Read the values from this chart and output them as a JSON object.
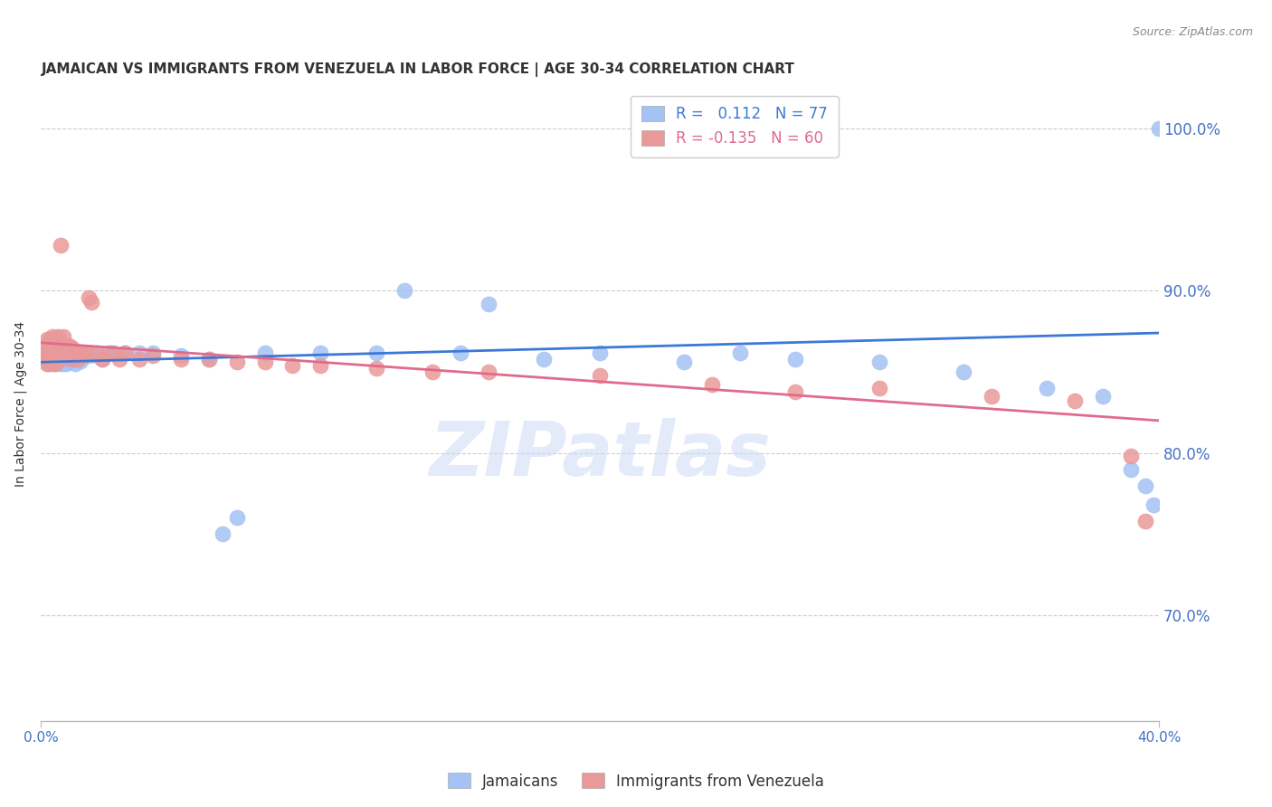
{
  "title": "JAMAICAN VS IMMIGRANTS FROM VENEZUELA IN LABOR FORCE | AGE 30-34 CORRELATION CHART",
  "source": "Source: ZipAtlas.com",
  "ylabel": "In Labor Force | Age 30-34",
  "xlim": [
    0.0,
    0.4
  ],
  "ylim": [
    0.635,
    1.025
  ],
  "right_yticks": [
    1.0,
    0.9,
    0.8,
    0.7
  ],
  "right_yticklabels": [
    "100.0%",
    "90.0%",
    "80.0%",
    "70.0%"
  ],
  "blue_R": 0.112,
  "blue_N": 77,
  "pink_R": -0.135,
  "pink_N": 60,
  "blue_color": "#a4c2f4",
  "pink_color": "#ea9999",
  "blue_line_color": "#3c78d8",
  "pink_line_color": "#e06b8b",
  "blue_label": "Jamaicans",
  "pink_label": "Immigrants from Venezuela",
  "watermark": "ZIPatlas",
  "blue_scatter_x": [
    0.001,
    0.001,
    0.002,
    0.002,
    0.002,
    0.003,
    0.003,
    0.003,
    0.003,
    0.004,
    0.004,
    0.004,
    0.004,
    0.005,
    0.005,
    0.005,
    0.005,
    0.005,
    0.006,
    0.006,
    0.006,
    0.006,
    0.007,
    0.007,
    0.007,
    0.007,
    0.008,
    0.008,
    0.008,
    0.009,
    0.009,
    0.009,
    0.01,
    0.01,
    0.01,
    0.011,
    0.011,
    0.012,
    0.012,
    0.013,
    0.013,
    0.014,
    0.014,
    0.015,
    0.016,
    0.017,
    0.018,
    0.02,
    0.022,
    0.024,
    0.026,
    0.03,
    0.035,
    0.04,
    0.05,
    0.06,
    0.08,
    0.1,
    0.12,
    0.15,
    0.18,
    0.2,
    0.23,
    0.25,
    0.27,
    0.3,
    0.33,
    0.36,
    0.38,
    0.39,
    0.395,
    0.398,
    0.4,
    0.13,
    0.16,
    0.065,
    0.07
  ],
  "blue_scatter_y": [
    0.858,
    0.862,
    0.855,
    0.863,
    0.868,
    0.856,
    0.862,
    0.865,
    0.87,
    0.855,
    0.86,
    0.865,
    0.87,
    0.855,
    0.858,
    0.862,
    0.865,
    0.87,
    0.856,
    0.86,
    0.863,
    0.868,
    0.855,
    0.858,
    0.862,
    0.866,
    0.855,
    0.86,
    0.865,
    0.855,
    0.86,
    0.865,
    0.856,
    0.86,
    0.865,
    0.858,
    0.862,
    0.855,
    0.862,
    0.858,
    0.862,
    0.857,
    0.862,
    0.86,
    0.862,
    0.86,
    0.862,
    0.86,
    0.858,
    0.862,
    0.862,
    0.862,
    0.862,
    0.862,
    0.86,
    0.858,
    0.862,
    0.862,
    0.862,
    0.862,
    0.858,
    0.862,
    0.856,
    0.862,
    0.858,
    0.856,
    0.85,
    0.84,
    0.835,
    0.79,
    0.78,
    0.768,
    1.0,
    0.9,
    0.892,
    0.75,
    0.76
  ],
  "pink_scatter_x": [
    0.001,
    0.001,
    0.002,
    0.002,
    0.002,
    0.003,
    0.003,
    0.003,
    0.004,
    0.004,
    0.004,
    0.005,
    0.005,
    0.005,
    0.006,
    0.006,
    0.006,
    0.007,
    0.007,
    0.007,
    0.008,
    0.008,
    0.008,
    0.009,
    0.009,
    0.01,
    0.01,
    0.011,
    0.011,
    0.012,
    0.013,
    0.014,
    0.015,
    0.016,
    0.017,
    0.018,
    0.02,
    0.022,
    0.025,
    0.028,
    0.03,
    0.035,
    0.04,
    0.05,
    0.06,
    0.07,
    0.08,
    0.09,
    0.1,
    0.12,
    0.14,
    0.16,
    0.2,
    0.24,
    0.27,
    0.3,
    0.34,
    0.37,
    0.39,
    0.395
  ],
  "pink_scatter_y": [
    0.858,
    0.865,
    0.855,
    0.862,
    0.87,
    0.855,
    0.862,
    0.868,
    0.858,
    0.865,
    0.872,
    0.855,
    0.862,
    0.87,
    0.858,
    0.865,
    0.872,
    0.858,
    0.865,
    0.928,
    0.86,
    0.866,
    0.872,
    0.86,
    0.866,
    0.86,
    0.866,
    0.858,
    0.865,
    0.862,
    0.858,
    0.862,
    0.86,
    0.862,
    0.896,
    0.893,
    0.862,
    0.858,
    0.862,
    0.858,
    0.862,
    0.858,
    0.86,
    0.858,
    0.858,
    0.856,
    0.856,
    0.854,
    0.854,
    0.852,
    0.85,
    0.85,
    0.848,
    0.842,
    0.838,
    0.84,
    0.835,
    0.832,
    0.798,
    0.758
  ],
  "blue_line_x0": 0.0,
  "blue_line_y0": 0.856,
  "blue_line_x1": 0.4,
  "blue_line_y1": 0.874,
  "pink_line_x0": 0.0,
  "pink_line_y0": 0.868,
  "pink_line_x1": 0.4,
  "pink_line_y1": 0.82,
  "title_fontsize": 11,
  "axis_label_fontsize": 10,
  "tick_fontsize": 10,
  "legend_fontsize": 12,
  "source_fontsize": 9,
  "background_color": "#ffffff",
  "grid_color": "#cccccc",
  "title_color": "#333333",
  "right_tick_color": "#4472c4",
  "bottom_tick_color": "#4472c4"
}
